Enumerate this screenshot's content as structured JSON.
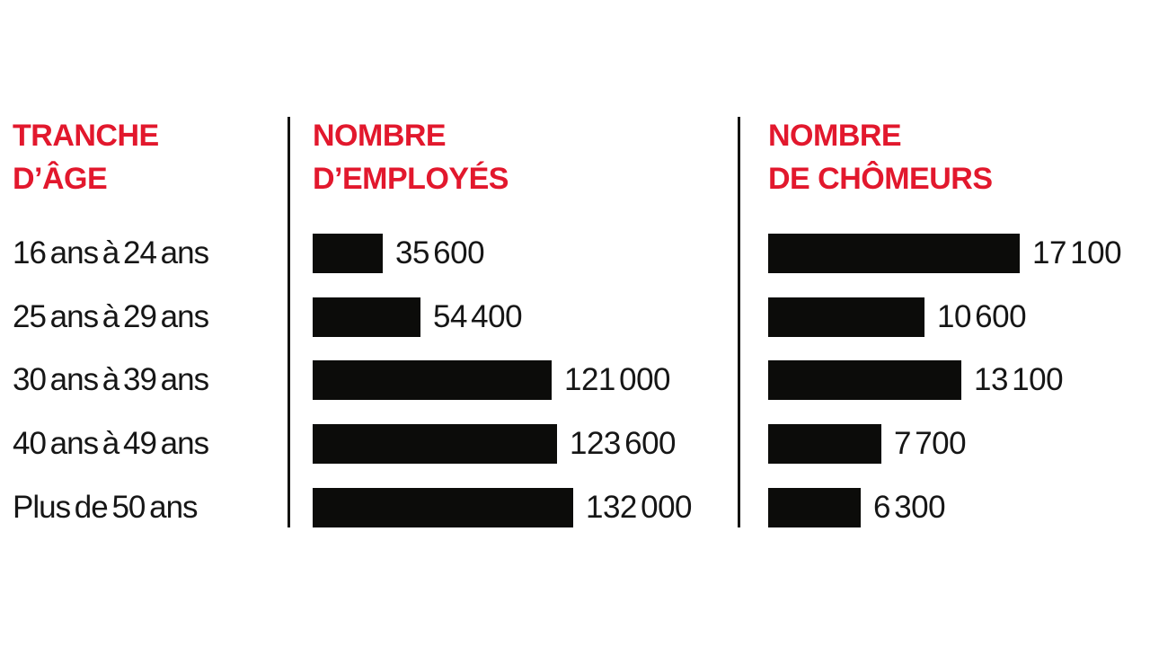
{
  "colors": {
    "accent_red": "#e2182d",
    "bar_black": "#0c0c0a",
    "text_black": "#161616",
    "background": "#ffffff"
  },
  "columns": {
    "age": {
      "title_line1": "TRANCHE",
      "title_line2": "D’ÂGE"
    },
    "employees": {
      "title_line1": "NOMBRE",
      "title_line2": "D’EMPLOYÉS"
    },
    "unemployed": {
      "title_line1": "NOMBRE",
      "title_line2": "DE CHÔMEURS"
    }
  },
  "chart_data": {
    "type": "bar",
    "orientation": "horizontal",
    "grid": false,
    "legend_position": "none",
    "categories": [
      "16 ans à 24 ans",
      "25 ans à 29 ans",
      "30 ans à 39 ans",
      "40 ans à 49 ans",
      "Plus de 50 ans"
    ],
    "series": [
      {
        "name": "Nombre d’employés",
        "values": [
          35600,
          54400,
          121000,
          123600,
          132000
        ],
        "labels": [
          "35 600",
          "54 400",
          "121 000",
          "123 600",
          "132 000"
        ],
        "xlim": [
          0,
          132000
        ]
      },
      {
        "name": "Nombre de chômeurs",
        "values": [
          17100,
          10600,
          13100,
          7700,
          6300
        ],
        "labels": [
          "17 100",
          "10 600",
          "13 100",
          "7 700",
          "6 300"
        ],
        "xlim": [
          0,
          17100
        ]
      }
    ]
  }
}
